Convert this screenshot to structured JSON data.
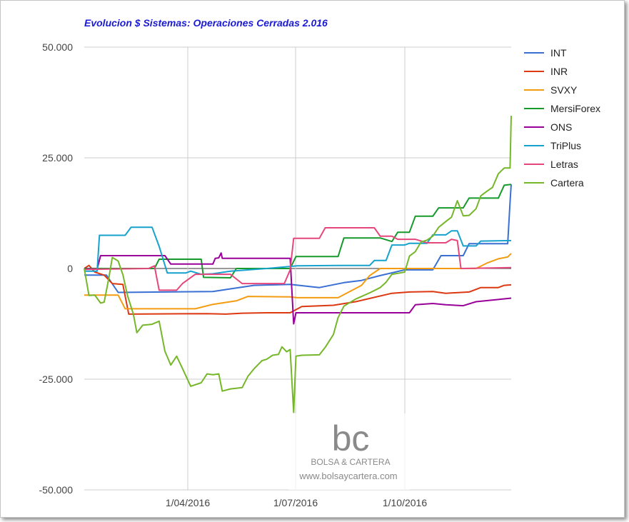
{
  "chart_data": {
    "type": "line",
    "title": "Evolucion $ Sistemas: Operaciones Cerradas 2.016",
    "xlabel": "",
    "ylabel": "",
    "x_tick_labels": [
      "1/04/2016",
      "1/07/2016",
      "1/10/2016"
    ],
    "y_tick_labels": [
      "50.000",
      "25.000",
      "0",
      "-25.000",
      "-50.000"
    ],
    "y_tick_values": [
      50000,
      25000,
      0,
      -25000,
      -50000
    ],
    "ylim": [
      -50000,
      50000
    ],
    "xlim": [
      "2016-01-01",
      "2016-12-31"
    ],
    "grid": true,
    "legend_position": "right",
    "series": [
      {
        "name": "INT",
        "color": "#3a6fd3",
        "points": [
          [
            "2016-01-01",
            -1500
          ],
          [
            "2016-01-20",
            -1500
          ],
          [
            "2016-01-30",
            -5400
          ],
          [
            "2016-04-20",
            -5200
          ],
          [
            "2016-05-05",
            -4600
          ],
          [
            "2016-05-25",
            -3800
          ],
          [
            "2016-06-25",
            -3600
          ],
          [
            "2016-07-20",
            -4300
          ],
          [
            "2016-08-10",
            -3200
          ],
          [
            "2016-08-25",
            -2700
          ],
          [
            "2016-09-10",
            -1600
          ],
          [
            "2016-10-01",
            -300
          ],
          [
            "2016-10-25",
            -300
          ],
          [
            "2016-11-01",
            2900
          ],
          [
            "2016-11-20",
            2900
          ],
          [
            "2016-11-25",
            5600
          ],
          [
            "2016-12-28",
            5600
          ],
          [
            "2016-12-30",
            15000
          ],
          [
            "2016-12-31",
            19000
          ]
        ]
      },
      {
        "name": "INR",
        "color": "#dc3912",
        "points": [
          [
            "2016-01-01",
            0
          ],
          [
            "2016-01-05",
            700
          ],
          [
            "2016-01-10",
            -800
          ],
          [
            "2016-01-18",
            -1500
          ],
          [
            "2016-01-25",
            -3400
          ],
          [
            "2016-02-03",
            -3600
          ],
          [
            "2016-02-08",
            -10300
          ],
          [
            "2016-04-15",
            -10200
          ],
          [
            "2016-05-01",
            -10300
          ],
          [
            "2016-05-15",
            -10100
          ],
          [
            "2016-06-05",
            -10000
          ],
          [
            "2016-06-25",
            -10000
          ],
          [
            "2016-07-05",
            -8600
          ],
          [
            "2016-08-01",
            -8300
          ],
          [
            "2016-08-20",
            -7500
          ],
          [
            "2016-09-20",
            -5600
          ],
          [
            "2016-10-05",
            -5300
          ],
          [
            "2016-10-25",
            -5200
          ],
          [
            "2016-11-05",
            -5600
          ],
          [
            "2016-11-25",
            -5300
          ],
          [
            "2016-12-05",
            -4300
          ],
          [
            "2016-12-20",
            -4300
          ],
          [
            "2016-12-25",
            -3800
          ],
          [
            "2016-12-31",
            -3700
          ]
        ]
      },
      {
        "name": "SVXY",
        "color": "#f39c12",
        "points": [
          [
            "2016-01-01",
            -6000
          ],
          [
            "2016-01-30",
            -6000
          ],
          [
            "2016-02-05",
            -9100
          ],
          [
            "2016-04-05",
            -9100
          ],
          [
            "2016-04-20",
            -8100
          ],
          [
            "2016-05-10",
            -7300
          ],
          [
            "2016-05-20",
            -6300
          ],
          [
            "2016-06-25",
            -6400
          ],
          [
            "2016-07-01",
            -6600
          ],
          [
            "2016-08-05",
            -6600
          ],
          [
            "2016-08-15",
            -5200
          ],
          [
            "2016-08-25",
            -3800
          ],
          [
            "2016-09-01",
            -1600
          ],
          [
            "2016-09-10",
            0
          ],
          [
            "2016-10-01",
            0
          ],
          [
            "2016-12-01",
            0
          ],
          [
            "2016-12-10",
            1200
          ],
          [
            "2016-12-20",
            2200
          ],
          [
            "2016-12-28",
            2600
          ],
          [
            "2016-12-31",
            3400
          ]
        ]
      },
      {
        "name": "MersiForex",
        "color": "#159a2b",
        "points": [
          [
            "2016-01-01",
            0
          ],
          [
            "2016-03-01",
            0
          ],
          [
            "2016-03-05",
            2100
          ],
          [
            "2016-04-10",
            2100
          ],
          [
            "2016-04-12",
            -2000
          ],
          [
            "2016-05-05",
            -2100
          ],
          [
            "2016-05-10",
            0
          ],
          [
            "2016-05-25",
            0
          ],
          [
            "2016-06-25",
            0
          ],
          [
            "2016-06-30",
            2700
          ],
          [
            "2016-07-10",
            2700
          ],
          [
            "2016-08-05",
            2700
          ],
          [
            "2016-08-10",
            6900
          ],
          [
            "2016-09-10",
            6900
          ],
          [
            "2016-09-20",
            6100
          ],
          [
            "2016-09-25",
            8200
          ],
          [
            "2016-10-05",
            8200
          ],
          [
            "2016-10-10",
            11800
          ],
          [
            "2016-10-25",
            11800
          ],
          [
            "2016-10-30",
            13700
          ],
          [
            "2016-11-20",
            13700
          ],
          [
            "2016-11-25",
            15900
          ],
          [
            "2016-12-20",
            15900
          ],
          [
            "2016-12-25",
            18800
          ],
          [
            "2016-12-31",
            19000
          ]
        ]
      },
      {
        "name": "ONS",
        "color": "#990099",
        "points": [
          [
            "2016-01-01",
            -100
          ],
          [
            "2016-01-12",
            -100
          ],
          [
            "2016-01-15",
            2900
          ],
          [
            "2016-03-10",
            2900
          ],
          [
            "2016-03-15",
            1000
          ],
          [
            "2016-04-01",
            1000
          ],
          [
            "2016-04-20",
            1000
          ],
          [
            "2016-04-22",
            2300
          ],
          [
            "2016-04-25",
            2400
          ],
          [
            "2016-04-27",
            3500
          ],
          [
            "2016-04-28",
            2300
          ],
          [
            "2016-06-25",
            2300
          ],
          [
            "2016-06-28",
            -12500
          ],
          [
            "2016-06-30",
            -10000
          ],
          [
            "2016-07-10",
            -10000
          ],
          [
            "2016-10-05",
            -10000
          ],
          [
            "2016-10-10",
            -8200
          ],
          [
            "2016-10-25",
            -7900
          ],
          [
            "2016-11-05",
            -8200
          ],
          [
            "2016-11-20",
            -8400
          ],
          [
            "2016-12-01",
            -7500
          ],
          [
            "2016-12-20",
            -7000
          ],
          [
            "2016-12-31",
            -6700
          ]
        ]
      },
      {
        "name": "TriPlus",
        "color": "#16a2cd",
        "points": [
          [
            "2016-01-01",
            -600
          ],
          [
            "2016-01-12",
            -600
          ],
          [
            "2016-01-14",
            7500
          ],
          [
            "2016-02-05",
            7500
          ],
          [
            "2016-02-10",
            9300
          ],
          [
            "2016-02-28",
            9300
          ],
          [
            "2016-03-05",
            5000
          ],
          [
            "2016-03-12",
            -1000
          ],
          [
            "2016-03-28",
            -1000
          ],
          [
            "2016-04-01",
            -600
          ],
          [
            "2016-04-10",
            -1300
          ],
          [
            "2016-04-20",
            -1200
          ],
          [
            "2016-05-05",
            -600
          ],
          [
            "2016-06-05",
            0
          ],
          [
            "2016-07-01",
            600
          ],
          [
            "2016-08-05",
            700
          ],
          [
            "2016-09-01",
            700
          ],
          [
            "2016-09-05",
            1800
          ],
          [
            "2016-09-15",
            1800
          ],
          [
            "2016-09-20",
            5300
          ],
          [
            "2016-10-01",
            5300
          ],
          [
            "2016-10-05",
            5700
          ],
          [
            "2016-10-20",
            5700
          ],
          [
            "2016-10-25",
            7600
          ],
          [
            "2016-11-05",
            7600
          ],
          [
            "2016-11-10",
            8500
          ],
          [
            "2016-11-15",
            8500
          ],
          [
            "2016-11-20",
            5100
          ],
          [
            "2016-12-01",
            5100
          ],
          [
            "2016-12-05",
            6200
          ],
          [
            "2016-12-31",
            6300
          ]
        ]
      },
      {
        "name": "Letras",
        "color": "#e5477d",
        "points": [
          [
            "2016-01-01",
            -200
          ],
          [
            "2016-02-25",
            0
          ],
          [
            "2016-03-01",
            600
          ],
          [
            "2016-03-05",
            -4900
          ],
          [
            "2016-03-20",
            -4900
          ],
          [
            "2016-03-25",
            -3400
          ],
          [
            "2016-04-05",
            -1300
          ],
          [
            "2016-04-20",
            -1300
          ],
          [
            "2016-05-05",
            -1300
          ],
          [
            "2016-05-15",
            -3400
          ],
          [
            "2016-06-20",
            -3400
          ],
          [
            "2016-06-25",
            -300
          ],
          [
            "2016-06-28",
            6800
          ],
          [
            "2016-07-20",
            6800
          ],
          [
            "2016-07-25",
            9200
          ],
          [
            "2016-08-15",
            9200
          ],
          [
            "2016-08-20",
            9200
          ],
          [
            "2016-09-05",
            9200
          ],
          [
            "2016-09-10",
            7300
          ],
          [
            "2016-09-20",
            7300
          ],
          [
            "2016-09-25",
            6600
          ],
          [
            "2016-10-10",
            6600
          ],
          [
            "2016-10-20",
            5800
          ],
          [
            "2016-11-05",
            5800
          ],
          [
            "2016-11-10",
            6600
          ],
          [
            "2016-11-15",
            6300
          ],
          [
            "2016-11-18",
            0
          ],
          [
            "2016-12-31",
            200
          ]
        ]
      },
      {
        "name": "Cartera",
        "color": "#76b72a",
        "points": [
          [
            "2016-01-01",
            0
          ],
          [
            "2016-01-05",
            -6100
          ],
          [
            "2016-01-10",
            -6000
          ],
          [
            "2016-01-15",
            -7800
          ],
          [
            "2016-01-18",
            -7600
          ],
          [
            "2016-01-22",
            -2200
          ],
          [
            "2016-01-25",
            2500
          ],
          [
            "2016-01-30",
            1700
          ],
          [
            "2016-02-03",
            -1400
          ],
          [
            "2016-02-07",
            -6100
          ],
          [
            "2016-02-12",
            -10300
          ],
          [
            "2016-02-15",
            -14500
          ],
          [
            "2016-02-20",
            -12800
          ],
          [
            "2016-02-28",
            -12600
          ],
          [
            "2016-03-05",
            -11900
          ],
          [
            "2016-03-10",
            -18700
          ],
          [
            "2016-03-15",
            -21800
          ],
          [
            "2016-03-20",
            -19800
          ],
          [
            "2016-03-25",
            -22600
          ],
          [
            "2016-04-01",
            -26600
          ],
          [
            "2016-04-10",
            -25800
          ],
          [
            "2016-04-15",
            -23800
          ],
          [
            "2016-04-20",
            -24000
          ],
          [
            "2016-04-25",
            -23800
          ],
          [
            "2016-04-28",
            -27700
          ],
          [
            "2016-05-05",
            -27200
          ],
          [
            "2016-05-15",
            -26900
          ],
          [
            "2016-05-20",
            -24300
          ],
          [
            "2016-05-25",
            -22700
          ],
          [
            "2016-06-01",
            -20800
          ],
          [
            "2016-06-05",
            -20500
          ],
          [
            "2016-06-10",
            -19600
          ],
          [
            "2016-06-15",
            -19400
          ],
          [
            "2016-06-18",
            -17700
          ],
          [
            "2016-06-22",
            -18800
          ],
          [
            "2016-06-25",
            -18300
          ],
          [
            "2016-06-28",
            -32500
          ],
          [
            "2016-06-30",
            -19800
          ],
          [
            "2016-07-05",
            -19600
          ],
          [
            "2016-07-20",
            -19500
          ],
          [
            "2016-07-25",
            -17800
          ],
          [
            "2016-08-01",
            -14900
          ],
          [
            "2016-08-05",
            -11100
          ],
          [
            "2016-08-10",
            -8500
          ],
          [
            "2016-08-20",
            -6900
          ],
          [
            "2016-09-01",
            -5500
          ],
          [
            "2016-09-10",
            -4300
          ],
          [
            "2016-09-15",
            -3100
          ],
          [
            "2016-09-20",
            -1300
          ],
          [
            "2016-09-25",
            -1100
          ],
          [
            "2016-10-01",
            -800
          ],
          [
            "2016-10-05",
            2800
          ],
          [
            "2016-10-10",
            3800
          ],
          [
            "2016-10-15",
            6000
          ],
          [
            "2016-10-20",
            6400
          ],
          [
            "2016-10-25",
            7300
          ],
          [
            "2016-10-30",
            9300
          ],
          [
            "2016-11-05",
            10600
          ],
          [
            "2016-11-10",
            11600
          ],
          [
            "2016-11-15",
            15300
          ],
          [
            "2016-11-20",
            11900
          ],
          [
            "2016-11-25",
            12000
          ],
          [
            "2016-12-01",
            13500
          ],
          [
            "2016-12-05",
            16400
          ],
          [
            "2016-12-10",
            17400
          ],
          [
            "2016-12-15",
            18300
          ],
          [
            "2016-12-20",
            21400
          ],
          [
            "2016-12-25",
            22700
          ],
          [
            "2016-12-30",
            22700
          ],
          [
            "2016-12-31",
            34500
          ]
        ]
      }
    ]
  },
  "watermark": {
    "logo_text": "bc",
    "name": "BOLSA & CARTERA",
    "url": "www.bolsaycartera.com"
  }
}
